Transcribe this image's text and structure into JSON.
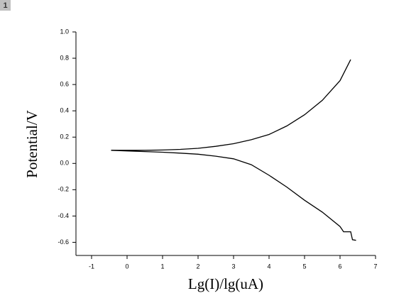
{
  "badge": "1",
  "chart_data": {
    "type": "line",
    "xlabel": "Lg(I)/lg(uA)",
    "ylabel": "Potential/V",
    "xlim": [
      -1.44,
      7
    ],
    "xticks": [
      -1,
      0,
      1,
      2,
      3,
      4,
      5,
      6,
      7
    ],
    "ylim": [
      -0.7,
      1.0
    ],
    "yticks": [
      {
        "value": 1.0,
        "label": "1.0"
      },
      0.8,
      0.6,
      0.4,
      0.2,
      {
        "value": 0.0,
        "label": "0.0"
      },
      -0.2,
      -0.4,
      -0.6
    ],
    "grid": false,
    "series": [
      {
        "color": "#000000",
        "x": [
          -0.45,
          0,
          0.5,
          1,
          1.5,
          2,
          2.5,
          3,
          3.5,
          4,
          4.5,
          5,
          5.5,
          6,
          6.3
        ],
        "values": [
          0.1,
          0.1,
          0.1,
          0.102,
          0.107,
          0.115,
          0.13,
          0.15,
          0.18,
          0.22,
          0.285,
          0.37,
          0.48,
          0.63,
          0.79
        ]
      },
      {
        "color": "#000000",
        "x": [
          -0.45,
          0,
          0.5,
          1,
          1.5,
          2,
          2.5,
          3,
          3.5,
          4,
          4.5,
          5,
          5.5,
          6,
          6.1,
          6.3,
          6.35,
          6.45
        ],
        "values": [
          0.1,
          0.095,
          0.09,
          0.085,
          0.078,
          0.07,
          0.055,
          0.035,
          -0.01,
          -0.09,
          -0.18,
          -0.28,
          -0.37,
          -0.48,
          -0.52,
          -0.52,
          -0.58,
          -0.585
        ]
      }
    ]
  }
}
